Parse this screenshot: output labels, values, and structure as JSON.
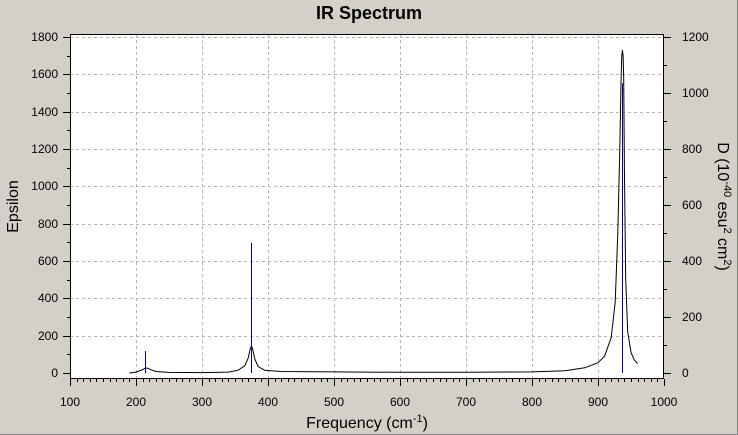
{
  "window": {
    "title": "IR Spectrum"
  },
  "chart_data": {
    "type": "line",
    "title": "IR Spectrum",
    "xlabel": "Frequency (cm",
    "xlabel_sup": "-1",
    "xlabel_end": ")",
    "ylabel_left": "Epsilon",
    "ylabel_right": {
      "p1": "D (10",
      "s1": "-40",
      "p2": " esu",
      "s2": "2",
      "p3": " cm",
      "s3": "2",
      "p4": ")"
    },
    "xlim": [
      100,
      1000
    ],
    "ylim_left": [
      0,
      1800
    ],
    "ylim_right": [
      0,
      1200
    ],
    "x_ticks": [
      100,
      200,
      300,
      400,
      500,
      600,
      700,
      800,
      900,
      1000
    ],
    "y_ticks_left": [
      0,
      200,
      400,
      600,
      800,
      1000,
      1200,
      1400,
      1600,
      1800
    ],
    "y_ticks_right": [
      0,
      200,
      400,
      600,
      800,
      1000,
      1200
    ],
    "grid": true,
    "colors": {
      "spectrum": "#000000",
      "sticks": "#00007a",
      "grid": "#b4b4b4",
      "plot_bg": "#ffffff"
    },
    "series": [
      {
        "kind": "spectrum",
        "axis": "left",
        "x": [
          190,
          200,
          208,
          212,
          214,
          216,
          218,
          222,
          230,
          250,
          300,
          340,
          355,
          365,
          370,
          373,
          375,
          377,
          380,
          385,
          395,
          420,
          500,
          600,
          700,
          800,
          850,
          880,
          900,
          910,
          920,
          926,
          930,
          933,
          935,
          936,
          937,
          938,
          939,
          940,
          942,
          945,
          950,
          955,
          960
        ],
        "y": [
          0,
          5,
          15,
          22,
          26,
          27,
          25,
          18,
          8,
          3,
          2,
          5,
          15,
          40,
          80,
          130,
          145,
          125,
          75,
          35,
          15,
          8,
          6,
          4,
          4,
          6,
          12,
          28,
          55,
          90,
          190,
          380,
          750,
          1200,
          1580,
          1700,
          1730,
          1700,
          1580,
          1100,
          500,
          220,
          110,
          70,
          50
        ]
      },
      {
        "kind": "sticks",
        "axis": "right",
        "x": [
          214,
          374,
          937
        ],
        "y": [
          78,
          465,
          1035
        ]
      }
    ]
  }
}
